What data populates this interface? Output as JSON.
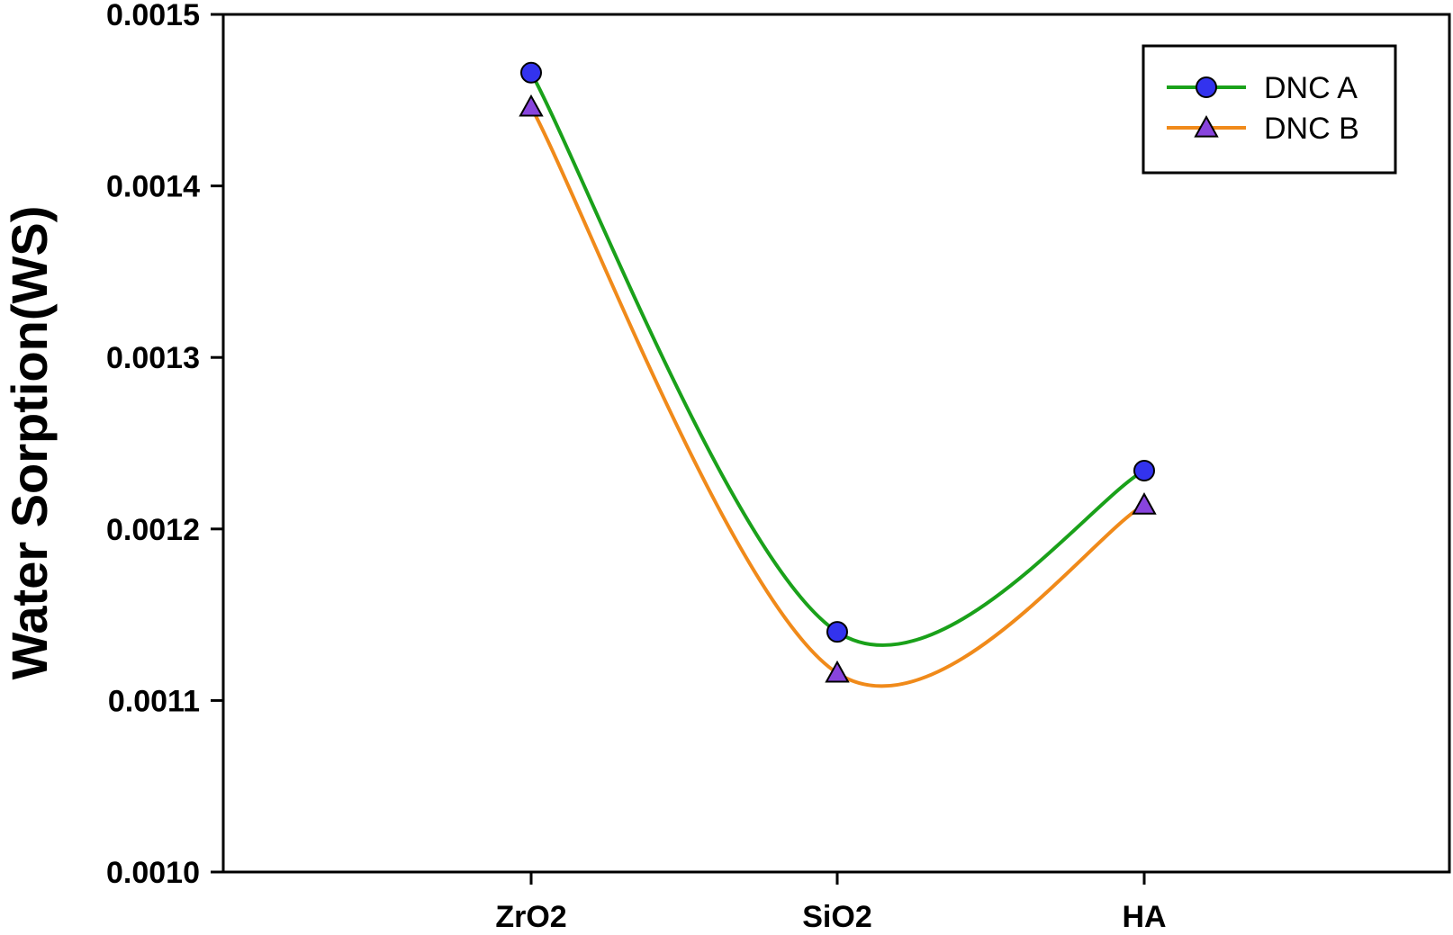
{
  "chart_data": {
    "type": "line",
    "categories": [
      "ZrO2",
      "SiO2",
      "HA"
    ],
    "series": [
      {
        "name": "DNC A",
        "values": [
          0.001466,
          0.00114,
          0.001234
        ],
        "line_color": "#1aa11a",
        "marker": "circle",
        "marker_color": "#3333ee"
      },
      {
        "name": "DNC B",
        "values": [
          0.001446,
          0.001116,
          0.001214
        ],
        "line_color": "#f08a1a",
        "marker": "triangle",
        "marker_color": "#8844dd"
      }
    ],
    "ylabel": "Water Sorption(WS)",
    "xlabel": "",
    "ylim": [
      0.001,
      0.0015
    ],
    "yticks": [
      "0.0010",
      "0.0011",
      "0.0012",
      "0.0013",
      "0.0014",
      "0.0015"
    ],
    "legend_position": "top-right",
    "grid": false,
    "smooth": true
  }
}
